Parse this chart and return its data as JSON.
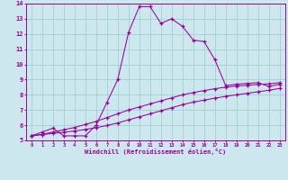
{
  "xlabel": "Windchill (Refroidissement éolien,°C)",
  "background_color": "#cce8ee",
  "grid_color": "#99cccc",
  "line_color": "#990099",
  "xlim": [
    -0.5,
    23.5
  ],
  "ylim": [
    5,
    14
  ],
  "xticks": [
    0,
    1,
    2,
    3,
    4,
    5,
    6,
    7,
    8,
    9,
    10,
    11,
    12,
    13,
    14,
    15,
    16,
    17,
    18,
    19,
    20,
    21,
    22,
    23
  ],
  "yticks": [
    5,
    6,
    7,
    8,
    9,
    10,
    11,
    12,
    13,
    14
  ],
  "curve1_x": [
    0,
    1,
    2,
    3,
    4,
    5,
    6,
    7,
    8,
    9,
    10,
    11,
    12,
    13,
    14,
    15,
    16,
    17,
    18,
    19,
    20,
    21,
    22,
    23
  ],
  "curve1_y": [
    5.3,
    5.55,
    5.8,
    5.3,
    5.3,
    5.3,
    6.0,
    7.5,
    9.0,
    12.1,
    13.8,
    13.8,
    12.7,
    13.0,
    12.5,
    11.6,
    11.5,
    10.3,
    8.6,
    8.7,
    8.75,
    8.8,
    8.55,
    8.7
  ],
  "curve2_x": [
    0,
    1,
    2,
    3,
    4,
    5,
    6,
    7,
    8,
    9,
    10,
    11,
    12,
    13,
    14,
    15,
    16,
    17,
    18,
    19,
    20,
    21,
    22,
    23
  ],
  "curve2_y": [
    5.3,
    5.4,
    5.55,
    5.7,
    5.85,
    6.05,
    6.25,
    6.5,
    6.75,
    7.0,
    7.2,
    7.4,
    7.6,
    7.8,
    8.0,
    8.15,
    8.28,
    8.4,
    8.5,
    8.58,
    8.63,
    8.68,
    8.72,
    8.8
  ],
  "curve3_x": [
    0,
    1,
    2,
    3,
    4,
    5,
    6,
    7,
    8,
    9,
    10,
    11,
    12,
    13,
    14,
    15,
    16,
    17,
    18,
    19,
    20,
    21,
    22,
    23
  ],
  "curve3_y": [
    5.3,
    5.38,
    5.46,
    5.54,
    5.62,
    5.72,
    5.84,
    5.98,
    6.15,
    6.35,
    6.55,
    6.75,
    6.95,
    7.15,
    7.35,
    7.52,
    7.65,
    7.78,
    7.9,
    8.0,
    8.1,
    8.2,
    8.3,
    8.42
  ]
}
